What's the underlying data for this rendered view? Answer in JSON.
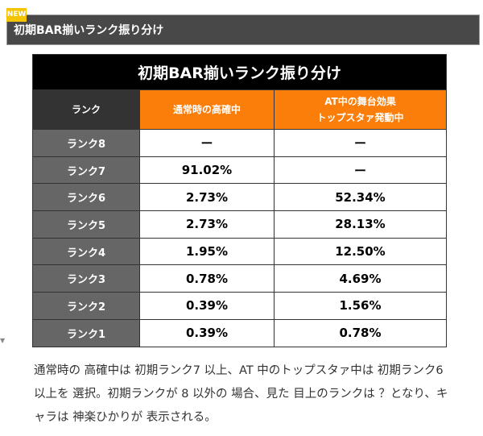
{
  "badge": "NEW",
  "section_title": "初期BAR揃いランク振り分け",
  "table": {
    "title": "初期BAR揃いランク振り分け",
    "headers": [
      "ランク",
      "通常時の高確中",
      "AT中の舞台効果",
      "トップスタァ発動中"
    ],
    "rows": [
      {
        "rank": "ランク8",
        "normal": "ー",
        "at": "ー"
      },
      {
        "rank": "ランク7",
        "normal": "91.02%",
        "at": "ー"
      },
      {
        "rank": "ランク6",
        "normal": "2.73%",
        "at": "52.34%"
      },
      {
        "rank": "ランク5",
        "normal": "2.73%",
        "at": "28.13%"
      },
      {
        "rank": "ランク4",
        "normal": "1.95%",
        "at": "12.50%"
      },
      {
        "rank": "ランク3",
        "normal": "0.78%",
        "at": "4.69%"
      },
      {
        "rank": "ランク2",
        "normal": "0.39%",
        "at": "1.56%"
      },
      {
        "rank": "ランク1",
        "normal": "0.39%",
        "at": "0.78%"
      }
    ]
  },
  "paragraph": "通常時の 高確中は 初期ランク7 以上、AT 中のトップスタァ中は 初期ランク6 以上を 選択。初期ランクが 8 以外の 場合、見た 目上のランクは ？となり、キャラは 神楽ひかりが 表示される。"
}
